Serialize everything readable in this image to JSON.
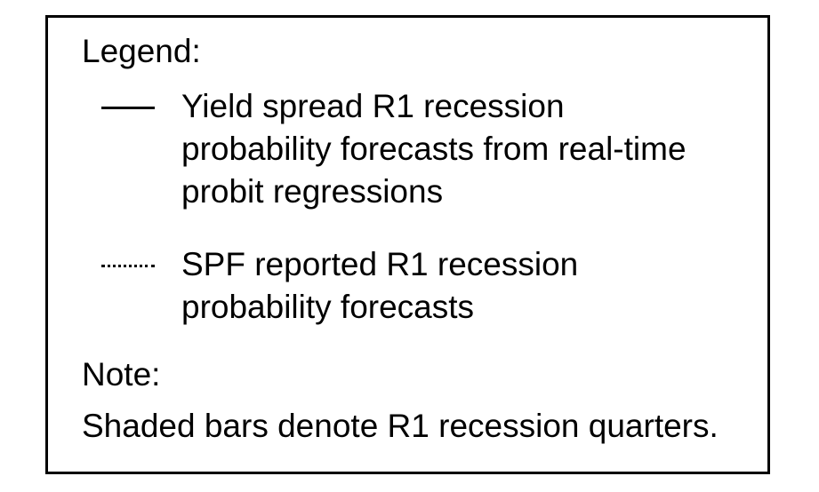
{
  "chart_data": {
    "type": "line",
    "legend": {
      "heading": "Legend:",
      "entries": [
        {
          "style": "solid",
          "color": "#000000",
          "label_lines": [
            "Yield spread R1 recession",
            "probability forecasts from real-time",
            "probit regressions"
          ]
        },
        {
          "style": "dotted",
          "color": "#000000",
          "label_lines": [
            "SPF reported R1 recession",
            "probability forecasts"
          ]
        }
      ]
    },
    "note": {
      "heading": "Note:",
      "text": "Shaded bars denote R1 recession quarters."
    }
  }
}
